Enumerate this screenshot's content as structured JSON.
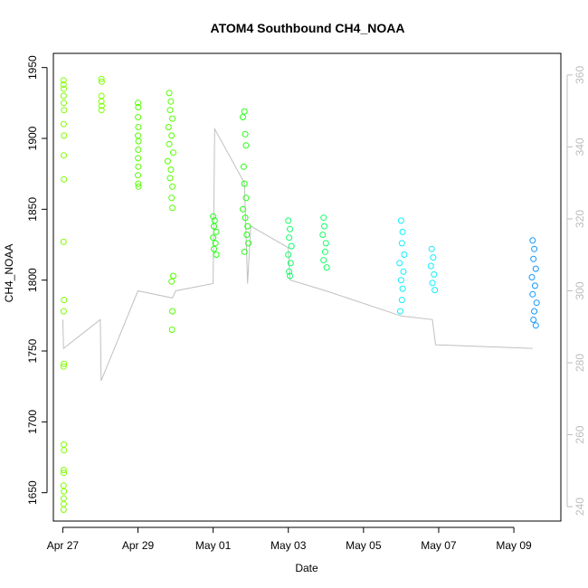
{
  "chart_data": {
    "type": "scatter",
    "title": "ATOM4 Southbound CH4_NOAA",
    "xlabel": "Date",
    "ylabel": "CH4_NOAA",
    "x_ticks": [
      "Apr 27",
      "Apr 29",
      "May 01",
      "May 03",
      "May 05",
      "May 07",
      "May 09"
    ],
    "x_tick_dates": [
      "2018-04-27",
      "2018-04-29",
      "2018-05-01",
      "2018-05-03",
      "2018-05-05",
      "2018-05-07",
      "2018-05-09"
    ],
    "xlim": [
      "2018-04-26T18:00",
      "2018-05-10T06:00"
    ],
    "ylim": [
      1630,
      1960
    ],
    "y_ticks": [
      1650,
      1700,
      1750,
      1800,
      1850,
      1900,
      1950
    ],
    "y2_ticks": [
      240,
      260,
      280,
      300,
      320,
      340,
      360
    ],
    "y2lim": [
      236,
      366
    ],
    "grid": false,
    "legend": "none",
    "colors": {
      "right_axis": "#bdbdbd",
      "secondary_line": "#c0c0c0",
      "frame": "#000000"
    },
    "series": [
      {
        "color": "#7fff00",
        "points": [
          [
            "2018-04-27T00:30",
            1941
          ],
          [
            "2018-04-27T00:30",
            1938
          ],
          [
            "2018-04-27T00:40",
            1935
          ],
          [
            "2018-04-27T00:35",
            1930
          ],
          [
            "2018-04-27T00:40",
            1925
          ],
          [
            "2018-04-27T00:45",
            1920
          ],
          [
            "2018-04-27T00:35",
            1910
          ],
          [
            "2018-04-27T00:50",
            1902
          ],
          [
            "2018-04-27T00:40",
            1888
          ],
          [
            "2018-04-27T00:45",
            1871
          ],
          [
            "2018-04-27T00:30",
            1827
          ],
          [
            "2018-04-27T00:50",
            1786
          ],
          [
            "2018-04-27T00:35",
            1778
          ],
          [
            "2018-04-27T00:45",
            1741
          ],
          [
            "2018-04-27T00:30",
            1739
          ],
          [
            "2018-04-27T00:40",
            1684
          ],
          [
            "2018-04-27T00:50",
            1680
          ],
          [
            "2018-04-27T00:35",
            1666
          ],
          [
            "2018-04-27T00:40",
            1664
          ],
          [
            "2018-04-27T00:30",
            1655
          ],
          [
            "2018-04-27T00:45",
            1651
          ],
          [
            "2018-04-27T00:35",
            1646
          ],
          [
            "2018-04-27T00:40",
            1642
          ],
          [
            "2018-04-27T00:30",
            1638
          ],
          [
            "2018-04-28T00:40",
            1942
          ],
          [
            "2018-04-28T00:50",
            1940
          ],
          [
            "2018-04-28T00:45",
            1930
          ],
          [
            "2018-04-28T00:40",
            1926
          ],
          [
            "2018-04-28T00:50",
            1923
          ],
          [
            "2018-04-28T00:45",
            1920
          ]
        ]
      },
      {
        "color": "#55ff00",
        "points": [
          [
            "2018-04-29T00:00",
            1925
          ],
          [
            "2018-04-29T00:10",
            1922
          ],
          [
            "2018-04-29T00:05",
            1915
          ],
          [
            "2018-04-29T00:15",
            1908
          ],
          [
            "2018-04-29T00:00",
            1902
          ],
          [
            "2018-04-29T00:20",
            1898
          ],
          [
            "2018-04-29T00:10",
            1892
          ],
          [
            "2018-04-29T00:05",
            1886
          ],
          [
            "2018-04-29T00:15",
            1880
          ],
          [
            "2018-04-29T00:00",
            1874
          ],
          [
            "2018-04-29T00:10",
            1868
          ],
          [
            "2018-04-29T00:20",
            1866
          ],
          [
            "2018-04-29T20:00",
            1932
          ],
          [
            "2018-04-29T21:00",
            1926
          ],
          [
            "2018-04-29T20:30",
            1920
          ],
          [
            "2018-04-29T22:00",
            1914
          ],
          [
            "2018-04-29T19:30",
            1908
          ],
          [
            "2018-04-29T21:30",
            1902
          ],
          [
            "2018-04-29T20:00",
            1896
          ],
          [
            "2018-04-29T22:30",
            1890
          ],
          [
            "2018-04-29T19:00",
            1884
          ],
          [
            "2018-04-29T21:00",
            1878
          ],
          [
            "2018-04-29T20:30",
            1872
          ],
          [
            "2018-04-29T22:00",
            1866
          ],
          [
            "2018-04-29T21:30",
            1858
          ],
          [
            "2018-04-29T22:00",
            1851
          ],
          [
            "2018-04-29T22:30",
            1803
          ],
          [
            "2018-04-29T21:30",
            1799
          ],
          [
            "2018-04-29T22:00",
            1778
          ],
          [
            "2018-04-29T21:45",
            1765
          ]
        ]
      },
      {
        "color": "#22ff11",
        "points": [
          [
            "2018-05-01T00:00",
            1845
          ],
          [
            "2018-05-01T01:00",
            1842
          ],
          [
            "2018-05-01T00:30",
            1838
          ],
          [
            "2018-05-01T02:00",
            1834
          ],
          [
            "2018-05-01T00:00",
            1830
          ],
          [
            "2018-05-01T01:30",
            1826
          ],
          [
            "2018-05-01T00:30",
            1822
          ],
          [
            "2018-05-01T02:00",
            1818
          ],
          [
            "2018-05-01T20:00",
            1919
          ],
          [
            "2018-05-01T19:00",
            1915
          ],
          [
            "2018-05-01T20:30",
            1903
          ],
          [
            "2018-05-01T21:00",
            1895
          ],
          [
            "2018-05-01T19:30",
            1880
          ],
          [
            "2018-05-01T20:00",
            1868
          ],
          [
            "2018-05-01T21:00",
            1858
          ],
          [
            "2018-05-01T19:00",
            1850
          ],
          [
            "2018-05-01T20:30",
            1844
          ],
          [
            "2018-05-01T22:00",
            1838
          ],
          [
            "2018-05-01T21:30",
            1832
          ],
          [
            "2018-05-01T22:30",
            1826
          ],
          [
            "2018-05-01T20:00",
            1820
          ]
        ]
      },
      {
        "color": "#11ff66",
        "points": [
          [
            "2018-05-03T00:00",
            1842
          ],
          [
            "2018-05-03T01:00",
            1836
          ],
          [
            "2018-05-03T00:30",
            1830
          ],
          [
            "2018-05-03T02:00",
            1824
          ],
          [
            "2018-05-03T00:00",
            1818
          ],
          [
            "2018-05-03T01:30",
            1812
          ],
          [
            "2018-05-03T00:30",
            1806
          ],
          [
            "2018-05-03T01:00",
            1803
          ],
          [
            "2018-05-03T22:30",
            1844
          ],
          [
            "2018-05-03T23:00",
            1838
          ],
          [
            "2018-05-03T22:00",
            1832
          ],
          [
            "2018-05-04T00:00",
            1826
          ],
          [
            "2018-05-03T23:30",
            1820
          ],
          [
            "2018-05-03T22:30",
            1814
          ],
          [
            "2018-05-04T00:30",
            1809
          ]
        ]
      },
      {
        "color": "#11eeff",
        "points": [
          [
            "2018-05-06T00:00",
            1842
          ],
          [
            "2018-05-06T01:00",
            1834
          ],
          [
            "2018-05-06T00:30",
            1826
          ],
          [
            "2018-05-06T02:00",
            1818
          ],
          [
            "2018-05-05T23:00",
            1812
          ],
          [
            "2018-05-06T01:30",
            1806
          ],
          [
            "2018-05-06T00:00",
            1800
          ],
          [
            "2018-05-06T01:00",
            1794
          ],
          [
            "2018-05-06T00:30",
            1786
          ],
          [
            "2018-05-05T23:30",
            1778
          ],
          [
            "2018-05-06T19:30",
            1822
          ],
          [
            "2018-05-06T20:30",
            1816
          ],
          [
            "2018-05-06T19:00",
            1810
          ],
          [
            "2018-05-06T21:00",
            1804
          ],
          [
            "2018-05-06T20:00",
            1798
          ],
          [
            "2018-05-06T21:30",
            1793
          ]
        ]
      },
      {
        "color": "#1199ff",
        "points": [
          [
            "2018-05-09T12:00",
            1828
          ],
          [
            "2018-05-09T13:00",
            1822
          ],
          [
            "2018-05-09T12:30",
            1815
          ],
          [
            "2018-05-09T14:00",
            1808
          ],
          [
            "2018-05-09T11:30",
            1802
          ],
          [
            "2018-05-09T13:30",
            1796
          ],
          [
            "2018-05-09T12:00",
            1790
          ],
          [
            "2018-05-09T14:30",
            1784
          ],
          [
            "2018-05-09T13:00",
            1778
          ],
          [
            "2018-05-09T12:30",
            1772
          ],
          [
            "2018-05-09T14:00",
            1768
          ]
        ]
      }
    ],
    "secondary_line": {
      "color": "#c0c0c0",
      "points": [
        [
          "2018-04-27T00:00",
          292
        ],
        [
          "2018-04-27T00:30",
          284
        ],
        [
          "2018-04-28T00:00",
          292
        ],
        [
          "2018-04-28T00:30",
          275
        ],
        [
          "2018-04-29T00:00",
          300
        ],
        [
          "2018-04-29T22:00",
          298
        ],
        [
          "2018-04-30T00:00",
          300
        ],
        [
          "2018-05-01T00:00",
          302
        ],
        [
          "2018-05-01T01:00",
          345
        ],
        [
          "2018-05-01T20:00",
          330
        ],
        [
          "2018-05-01T22:00",
          302
        ],
        [
          "2018-05-02T00:00",
          318
        ],
        [
          "2018-05-03T00:00",
          312
        ],
        [
          "2018-05-03T01:00",
          303
        ],
        [
          "2018-05-04T00:00",
          300
        ],
        [
          "2018-05-06T00:00",
          293
        ],
        [
          "2018-05-06T20:00",
          292
        ],
        [
          "2018-05-06T22:00",
          285
        ],
        [
          "2018-05-09T12:00",
          284
        ]
      ]
    }
  }
}
